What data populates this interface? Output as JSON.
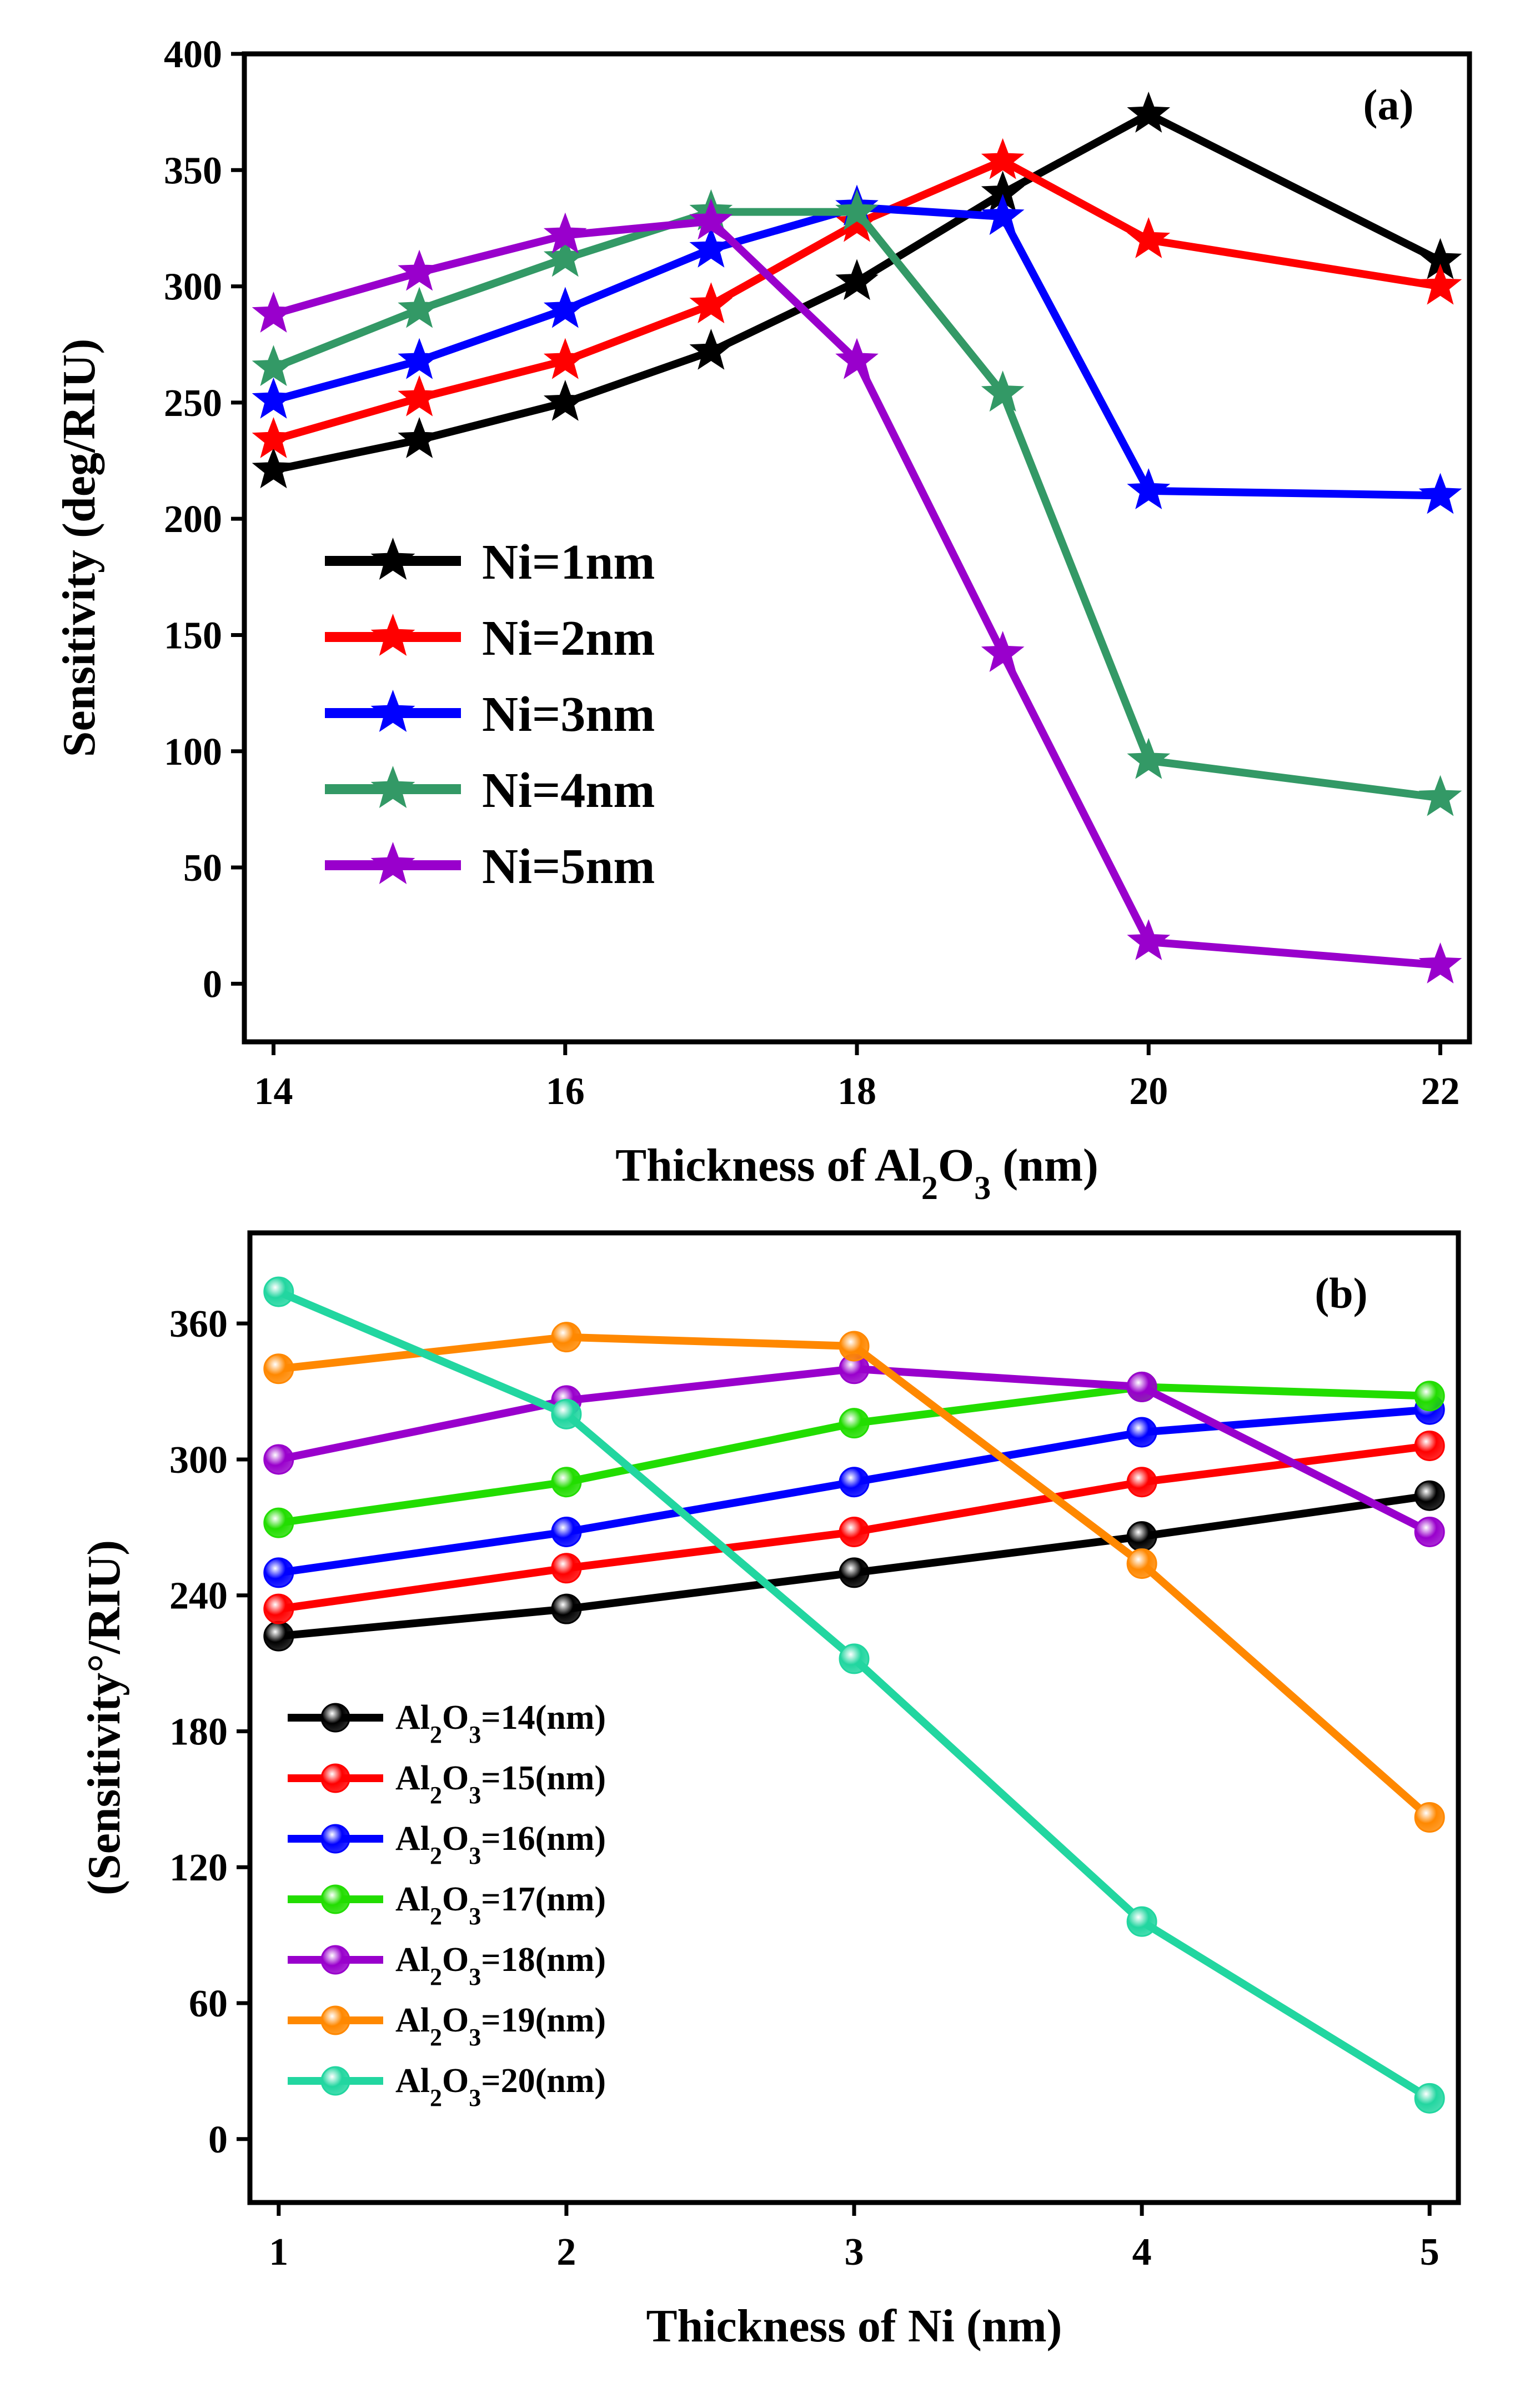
{
  "chart_data": [
    {
      "panel": "(a)",
      "type": "line",
      "marker": "star",
      "xlabel": "Thickness of Al2O3 (nm)",
      "ylabel": "Sensitivity (deg/RIU)",
      "xlim": [
        13.8,
        22.2
      ],
      "ylim": [
        -25,
        400
      ],
      "xticks": [
        "14",
        "16",
        "18",
        "20",
        "22"
      ],
      "yticks": [
        "0",
        "50",
        "100",
        "150",
        "200",
        "250",
        "300",
        "350",
        "400"
      ],
      "legend_position": "center-left",
      "series": [
        {
          "name": "Ni=1nm",
          "color": "#000000",
          "x": [
            14,
            15,
            16,
            17,
            18,
            19,
            20,
            22
          ],
          "values": [
            221,
            234,
            250,
            272,
            302,
            340,
            374,
            311
          ]
        },
        {
          "name": "Ni=2nm",
          "color": "#ff0000",
          "x": [
            14,
            15,
            16,
            17,
            18,
            19,
            20,
            22
          ],
          "values": [
            234,
            252,
            268,
            292,
            327,
            354,
            320,
            300
          ]
        },
        {
          "name": "Ni=3nm",
          "color": "#0000ff",
          "x": [
            14,
            15,
            16,
            17,
            18,
            19,
            20,
            22
          ],
          "values": [
            251,
            268,
            290,
            316,
            334,
            330,
            212,
            210
          ]
        },
        {
          "name": "Ni=4nm",
          "color": "#339966",
          "x": [
            14,
            15,
            16,
            17,
            18,
            19,
            20,
            22
          ],
          "values": [
            265,
            290,
            312,
            332,
            332,
            254,
            96,
            80
          ]
        },
        {
          "name": "Ni=5nm",
          "color": "#9900cc",
          "x": [
            14,
            15,
            16,
            17,
            18,
            19,
            20,
            22
          ],
          "values": [
            288,
            306,
            322,
            328,
            268,
            142,
            18,
            8
          ]
        }
      ]
    },
    {
      "panel": "(b)",
      "type": "line",
      "marker": "sphere",
      "xlabel": "Thickness of Ni (nm)",
      "ylabel": "(Sensitivity°/RIU)",
      "xlim": [
        0.9,
        5.1
      ],
      "ylim": [
        -28,
        400
      ],
      "xticks": [
        "1",
        "2",
        "3",
        "4",
        "5"
      ],
      "yticks": [
        "0",
        "60",
        "120",
        "180",
        "240",
        "300",
        "360"
      ],
      "legend_position": "lower-left",
      "series": [
        {
          "name": "Al2O3=14(nm)",
          "color": "#000000",
          "x": [
            1,
            2,
            3,
            4,
            5
          ],
          "values": [
            222,
            234,
            250,
            266,
            284
          ]
        },
        {
          "name": "Al2O3=15(nm)",
          "color": "#ff0000",
          "x": [
            1,
            2,
            3,
            4,
            5
          ],
          "values": [
            234,
            252,
            268,
            290,
            306
          ]
        },
        {
          "name": "Al2O3=16(nm)",
          "color": "#0000ff",
          "x": [
            1,
            2,
            3,
            4,
            5
          ],
          "values": [
            250,
            268,
            290,
            312,
            322
          ]
        },
        {
          "name": "Al2O3=17(nm)",
          "color": "#22dd00",
          "x": [
            1,
            2,
            3,
            4,
            5
          ],
          "values": [
            272,
            290,
            316,
            332,
            328
          ]
        },
        {
          "name": "Al2O3=18(nm)",
          "color": "#9900cc",
          "x": [
            1,
            2,
            3,
            4,
            5
          ],
          "values": [
            300,
            326,
            340,
            332,
            268
          ]
        },
        {
          "name": "Al2O3=19(nm)",
          "color": "#ff8800",
          "x": [
            1,
            2,
            3,
            4,
            5
          ],
          "values": [
            340,
            354,
            350,
            254,
            142
          ]
        },
        {
          "name": "Al2O3=20(nm)",
          "color": "#22d6a0",
          "x": [
            1,
            2,
            3,
            4,
            5
          ],
          "values": [
            374,
            320,
            212,
            96,
            18
          ]
        }
      ]
    }
  ]
}
